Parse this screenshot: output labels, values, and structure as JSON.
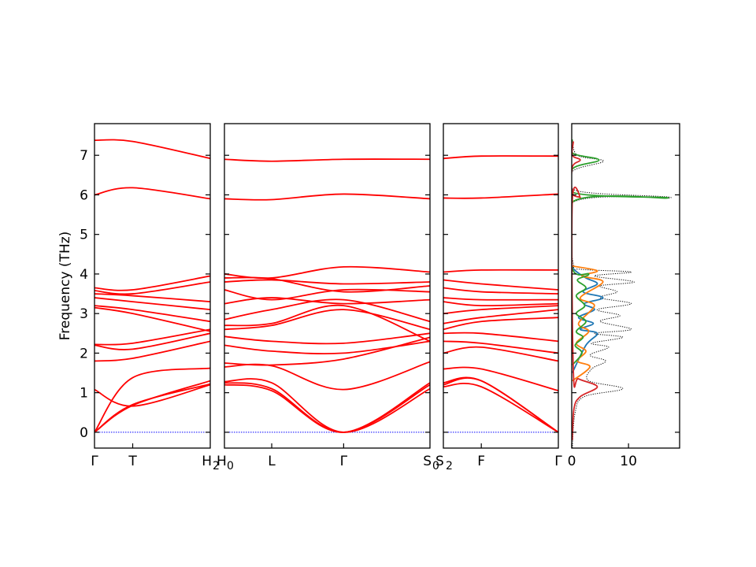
{
  "chart_data": {
    "type": "line",
    "ylabel": "Frequency (THz)",
    "ylim": [
      -0.4,
      7.8
    ],
    "yticks": [
      0,
      1,
      2,
      3,
      4,
      5,
      6,
      7
    ],
    "grid": false,
    "colors": {
      "bands": "#ff0000",
      "zero_line": "#0000ff",
      "dos_total": "#000000",
      "dos_1": "#1f77b4",
      "dos_2": "#ff7f0e",
      "dos_3": "#2ca02c",
      "dos_4": "#d62728"
    },
    "segments": [
      {
        "x": [
          0,
          0.33,
          1
        ],
        "tick_labels": [
          "Γ",
          "T",
          "H"
        ],
        "end_sublabel": "2",
        "bands": [
          {
            "values": [
              0,
              0.68,
              1.3
            ]
          },
          {
            "values": [
              0,
              0.7,
              1.22
            ]
          },
          {
            "values": [
              0,
              1.38,
              1.62
            ]
          },
          {
            "values": [
              1.08,
              0.66,
              1.2
            ]
          },
          {
            "values": [
              1.8,
              1.87,
              2.3
            ]
          },
          {
            "values": [
              2.2,
              2.1,
              2.5
            ]
          },
          {
            "values": [
              2.22,
              2.25,
              2.6
            ]
          },
          {
            "values": [
              3.15,
              3.0,
              2.55
            ]
          },
          {
            "values": [
              3.2,
              3.1,
              2.8
            ]
          },
          {
            "values": [
              3.4,
              3.3,
              3.1
            ]
          },
          {
            "values": [
              3.5,
              3.45,
              3.3
            ]
          },
          {
            "values": [
              3.58,
              3.5,
              3.8
            ]
          },
          {
            "values": [
              3.65,
              3.6,
              3.95
            ]
          },
          {
            "values": [
              6.0,
              6.18,
              5.9
            ]
          },
          {
            "values": [
              7.38,
              7.35,
              6.92
            ]
          }
        ]
      },
      {
        "x": [
          0,
          0.23,
          0.58,
          1
        ],
        "tick_labels": [
          "H",
          "L",
          "Γ",
          "S"
        ],
        "start_sublabel": "0",
        "end_sublabel": "0",
        "bands": [
          {
            "values": [
              1.2,
              1.05,
              0,
              1.25
            ]
          },
          {
            "values": [
              1.25,
              1.1,
              0,
              1.2
            ]
          },
          {
            "values": [
              1.28,
              1.25,
              0,
              1.1
            ]
          },
          {
            "values": [
              1.65,
              1.68,
              1.08,
              1.78
            ]
          },
          {
            "values": [
              1.75,
              1.7,
              1.85,
              2.4
            ]
          },
          {
            "values": [
              2.2,
              2.05,
              2.0,
              2.3
            ]
          },
          {
            "values": [
              2.42,
              2.3,
              2.25,
              2.5
            ]
          },
          {
            "values": [
              2.6,
              2.7,
              3.1,
              2.6
            ]
          },
          {
            "values": [
              2.7,
              2.75,
              3.2,
              2.3
            ]
          },
          {
            "values": [
              2.85,
              3.1,
              3.35,
              2.8
            ]
          },
          {
            "values": [
              3.25,
              3.4,
              3.25,
              3.35
            ]
          },
          {
            "values": [
              3.6,
              3.35,
              3.6,
              3.55
            ]
          },
          {
            "values": [
              3.8,
              3.85,
              3.75,
              3.8
            ]
          },
          {
            "values": [
              3.9,
              3.88,
              3.55,
              3.7
            ]
          },
          {
            "values": [
              4.0,
              3.9,
              4.18,
              4.05
            ]
          },
          {
            "values": [
              5.9,
              5.88,
              6.02,
              5.9
            ]
          },
          {
            "values": [
              6.9,
              6.85,
              6.9,
              6.9
            ]
          }
        ]
      },
      {
        "x": [
          0,
          0.33,
          1
        ],
        "tick_labels": [
          "S",
          "F",
          "Γ"
        ],
        "start_sublabel": "2",
        "bands": [
          {
            "values": [
              1.15,
              1.15,
              0
            ]
          },
          {
            "values": [
              1.2,
              1.3,
              0
            ]
          },
          {
            "values": [
              1.25,
              1.3,
              0
            ]
          },
          {
            "values": [
              1.6,
              1.6,
              1.05
            ]
          },
          {
            "values": [
              2.0,
              2.15,
              1.8
            ]
          },
          {
            "values": [
              2.3,
              2.25,
              2.0
            ]
          },
          {
            "values": [
              2.5,
              2.5,
              2.3
            ]
          },
          {
            "values": [
              2.6,
              2.8,
              2.9
            ]
          },
          {
            "values": [
              2.75,
              2.9,
              3.1
            ]
          },
          {
            "values": [
              3.0,
              3.1,
              3.2
            ]
          },
          {
            "values": [
              3.3,
              3.2,
              3.25
            ]
          },
          {
            "values": [
              3.4,
              3.35,
              3.35
            ]
          },
          {
            "values": [
              3.65,
              3.55,
              3.5
            ]
          },
          {
            "values": [
              3.85,
              3.75,
              3.6
            ]
          },
          {
            "values": [
              4.05,
              4.1,
              4.1
            ]
          },
          {
            "values": [
              5.92,
              5.92,
              6.02
            ]
          },
          {
            "values": [
              6.92,
              6.98,
              6.98
            ]
          }
        ]
      }
    ],
    "dos": {
      "xlim": [
        0,
        19
      ],
      "xticks": [
        0,
        10
      ],
      "series": [
        {
          "style": "dotted",
          "color": "#000000",
          "points": [
            [
              0.1,
              -0.4
            ],
            [
              0.6,
              0.5
            ],
            [
              2.2,
              0.9
            ],
            [
              9.0,
              1.1
            ],
            [
              3.0,
              1.3
            ],
            [
              3.5,
              1.6
            ],
            [
              6.0,
              1.8
            ],
            [
              3.2,
              1.95
            ],
            [
              6.5,
              2.15
            ],
            [
              3.5,
              2.25
            ],
            [
              9.0,
              2.4
            ],
            [
              4.0,
              2.5
            ],
            [
              10.5,
              2.6
            ],
            [
              5.0,
              2.8
            ],
            [
              8.5,
              2.95
            ],
            [
              4.5,
              3.1
            ],
            [
              10.5,
              3.25
            ],
            [
              5.0,
              3.4
            ],
            [
              8.0,
              3.55
            ],
            [
              5.0,
              3.7
            ],
            [
              11.0,
              3.8
            ],
            [
              4.0,
              3.95
            ],
            [
              10.5,
              4.05
            ],
            [
              1.5,
              4.12
            ],
            [
              0.3,
              4.25
            ],
            [
              0.1,
              5.8
            ],
            [
              17.5,
              5.93
            ],
            [
              1.0,
              6.1
            ],
            [
              0.2,
              6.6
            ],
            [
              5.6,
              6.85
            ],
            [
              1.0,
              7.0
            ],
            [
              0.1,
              7.4
            ]
          ]
        },
        {
          "style": "solid",
          "color": "#1f77b4",
          "points": [
            [
              0.1,
              1.5
            ],
            [
              2.5,
              2.2
            ],
            [
              4.5,
              2.5
            ],
            [
              1.5,
              2.6
            ],
            [
              3.8,
              2.75
            ],
            [
              1.2,
              2.9
            ],
            [
              4.0,
              3.1
            ],
            [
              2.2,
              3.25
            ],
            [
              5.5,
              3.4
            ],
            [
              2.0,
              3.55
            ],
            [
              4.5,
              3.75
            ],
            [
              2.5,
              3.9
            ],
            [
              0.5,
              4.1
            ],
            [
              0.1,
              4.2
            ]
          ]
        },
        {
          "style": "solid",
          "color": "#ff7f0e",
          "points": [
            [
              0.1,
              1.3
            ],
            [
              3.2,
              1.65
            ],
            [
              1.0,
              1.8
            ],
            [
              2.5,
              2.05
            ],
            [
              0.8,
              2.25
            ],
            [
              3.0,
              2.55
            ],
            [
              1.2,
              2.75
            ],
            [
              4.0,
              3.2
            ],
            [
              1.5,
              3.4
            ],
            [
              5.5,
              3.8
            ],
            [
              1.8,
              3.95
            ],
            [
              4.5,
              4.08
            ],
            [
              0.1,
              4.2
            ]
          ]
        },
        {
          "style": "solid",
          "color": "#2ca02c",
          "points": [
            [
              0.1,
              1.7
            ],
            [
              1.8,
              2.0
            ],
            [
              0.6,
              2.2
            ],
            [
              2.0,
              2.4
            ],
            [
              0.8,
              2.55
            ],
            [
              2.5,
              2.8
            ],
            [
              0.8,
              3.0
            ],
            [
              2.3,
              3.2
            ],
            [
              0.8,
              3.45
            ],
            [
              2.5,
              3.65
            ],
            [
              1.0,
              3.85
            ],
            [
              3.0,
              4.0
            ],
            [
              0.1,
              4.15
            ],
            [
              0.1,
              5.82
            ],
            [
              17.0,
              5.92
            ],
            [
              0.5,
              6.05
            ],
            [
              0.1,
              6.65
            ],
            [
              4.8,
              6.88
            ],
            [
              0.2,
              7.05
            ],
            [
              0.1,
              7.4
            ]
          ]
        },
        {
          "style": "solid",
          "color": "#d62728",
          "points": [
            [
              0.1,
              -0.2
            ],
            [
              0.4,
              0.6
            ],
            [
              1.5,
              0.9
            ],
            [
              4.5,
              1.15
            ],
            [
              1.2,
              1.35
            ],
            [
              0.3,
              1.5
            ],
            [
              0.1,
              5.85
            ],
            [
              1.5,
              5.93
            ],
            [
              0.1,
              6.05
            ],
            [
              0.1,
              6.7
            ],
            [
              1.5,
              6.88
            ],
            [
              0.1,
              7.0
            ],
            [
              0.3,
              7.35
            ]
          ]
        }
      ]
    }
  }
}
